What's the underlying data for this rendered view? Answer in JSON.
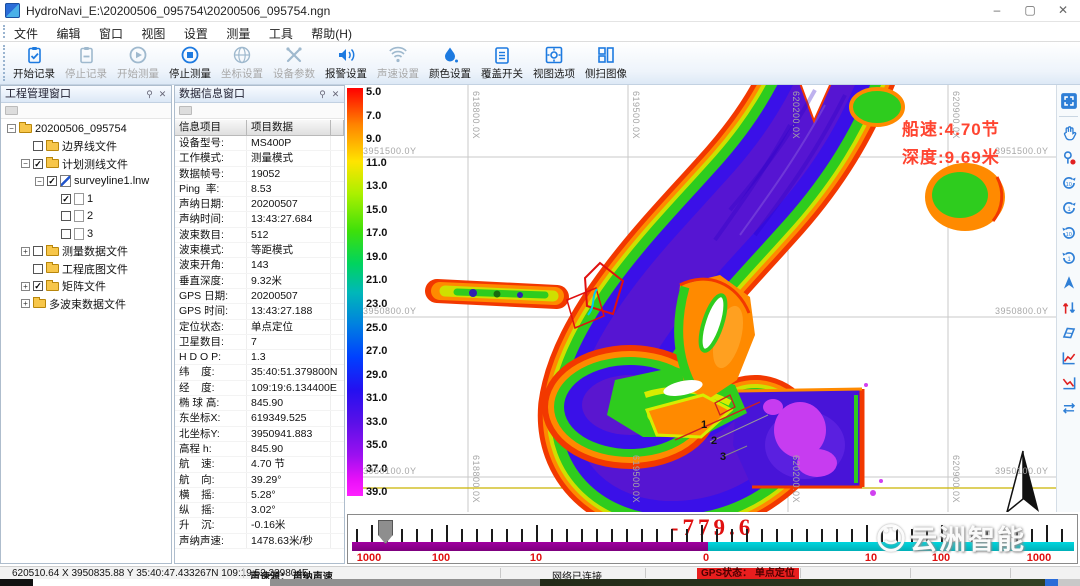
{
  "window": {
    "title": "HydroNavi_E:\\20200506_095754\\20200506_095754.ngn",
    "controls": {
      "minimize": "–",
      "restore": "▢",
      "close": "✕"
    }
  },
  "menu": {
    "items": [
      "文件",
      "编辑",
      "窗口",
      "视图",
      "设置",
      "测量",
      "工具",
      "帮助(H)"
    ]
  },
  "toolbar": {
    "buttons": [
      {
        "label": "开始记录",
        "icon": "record-start-icon",
        "enabled": true
      },
      {
        "label": "停止记录",
        "icon": "record-stop-icon",
        "enabled": false
      },
      {
        "label": "开始测量",
        "icon": "measure-start-icon",
        "enabled": false
      },
      {
        "label": "停止测量",
        "icon": "measure-stop-icon",
        "enabled": true
      },
      {
        "label": "坐标设置",
        "icon": "coordinate-settings-icon",
        "enabled": false
      },
      {
        "label": "设备参数",
        "icon": "device-params-icon",
        "enabled": false
      },
      {
        "label": "报警设置",
        "icon": "alarm-settings-icon",
        "enabled": true
      },
      {
        "label": "声速设置",
        "icon": "sound-speed-settings-icon",
        "enabled": false
      },
      {
        "label": "颜色设置",
        "icon": "color-settings-icon",
        "enabled": true
      },
      {
        "label": "覆盖开关",
        "icon": "overlay-switch-icon",
        "enabled": true
      },
      {
        "label": "视图选项",
        "icon": "view-options-icon",
        "enabled": true
      },
      {
        "label": "侧扫图像",
        "icon": "sidescan-image-icon",
        "enabled": true
      }
    ]
  },
  "project_panel": {
    "title": "工程管理窗口",
    "tree": [
      {
        "indent": 0,
        "expand": "minus",
        "check": null,
        "icon": "folder",
        "label": "20200506_095754"
      },
      {
        "indent": 1,
        "expand": null,
        "check": "off",
        "icon": "folder",
        "label": "边界线文件"
      },
      {
        "indent": 1,
        "expand": "minus",
        "check": "on",
        "icon": "folder",
        "label": "计划测线文件"
      },
      {
        "indent": 2,
        "expand": "minus",
        "check": "on",
        "icon": "linefile",
        "label": "surveyline1.lnw"
      },
      {
        "indent": 3,
        "expand": null,
        "check": "on",
        "icon": "page",
        "label": "1"
      },
      {
        "indent": 3,
        "expand": null,
        "check": "off",
        "icon": "page",
        "label": "2"
      },
      {
        "indent": 3,
        "expand": null,
        "check": "off",
        "icon": "page",
        "label": "3"
      },
      {
        "indent": 1,
        "expand": "plus",
        "check": "off",
        "icon": "folder",
        "label": "测量数据文件"
      },
      {
        "indent": 1,
        "expand": null,
        "check": "off",
        "icon": "folder",
        "label": "工程底图文件"
      },
      {
        "indent": 1,
        "expand": "plus",
        "check": "on",
        "icon": "folder",
        "label": "矩阵文件"
      },
      {
        "indent": 1,
        "expand": "plus",
        "check": null,
        "icon": "folder",
        "label": "多波束数据文件"
      }
    ]
  },
  "data_panel": {
    "title": "数据信息窗口",
    "columns": [
      "信息项目",
      "项目数据"
    ],
    "rows": [
      [
        "设备型号:",
        "MS400P"
      ],
      [
        "工作模式:",
        "测量模式"
      ],
      [
        "数据帧号:",
        "19052"
      ],
      [
        "Ping  率:",
        "8.53"
      ],
      [
        "声纳日期:",
        "20200507"
      ],
      [
        "声纳时间:",
        "13:43:27.684"
      ],
      [
        "波束数目:",
        "512"
      ],
      [
        "波束模式:",
        "等距模式"
      ],
      [
        "波束开角:",
        "143"
      ],
      [
        "垂直深度:",
        "9.32米"
      ],
      [
        "GPS 日期:",
        "20200507"
      ],
      [
        "GPS 时间:",
        "13:43:27.188"
      ],
      [
        "定位状态:",
        "单点定位"
      ],
      [
        "卫星数目:",
        "7"
      ],
      [
        "H D O P:",
        "1.3"
      ],
      [
        "纬    度:",
        "35:40:51.379800N"
      ],
      [
        "经    度:",
        "109:19:6.134400E"
      ],
      [
        "椭 球 高:",
        "845.90"
      ],
      [
        "东坐标X:",
        "619349.525"
      ],
      [
        "北坐标Y:",
        "3950941.883"
      ],
      [
        "高程 h:",
        "845.90"
      ],
      [
        "航    速:",
        "4.70 节"
      ],
      [
        "航    向:",
        "39.29°"
      ],
      [
        "横    摇:",
        "5.28°"
      ],
      [
        "纵    摇:",
        "3.02°"
      ],
      [
        "升    沉:",
        "-0.16米"
      ],
      [
        "声纳声速:",
        "1478.63米/秒"
      ]
    ]
  },
  "map": {
    "speed_label": "船速:4.70节",
    "depth_label": "深度:9.69米",
    "color_scale_values": [
      "5.0",
      "7.0",
      "9.0",
      "11.0",
      "13.0",
      "15.0",
      "17.0",
      "19.0",
      "21.0",
      "23.0",
      "25.0",
      "27.0",
      "29.0",
      "31.0",
      "33.0",
      "35.0",
      "37.0",
      "39.0"
    ],
    "grid_x_labels": [
      "618800.0X",
      "619500.0X",
      "620200.0X",
      "620900.0X"
    ],
    "grid_y_labels": [
      "3951500.0Y",
      "3950800.0Y",
      "3950100.0Y"
    ],
    "plan_line_labels": [
      "1",
      "2",
      "3"
    ]
  },
  "right_toolbar": {
    "tools": [
      "fullscreen",
      "pan-hand",
      "position-pin",
      "rotate-cw-10",
      "rotate-cw-1",
      "rotate-ccw-10",
      "rotate-ccw-1",
      "north-pointer",
      "updown-swap",
      "swath",
      "profile-chart",
      "profile-chart-alt",
      "exchange"
    ]
  },
  "slider": {
    "value": "-779.6",
    "tick_labels": [
      "1000",
      "100",
      "10",
      "0",
      "10",
      "100",
      "1000"
    ]
  },
  "statusbar": {
    "coordinates": "620510.64 X   3950835.88 Y   35:40:47.433267N 109:19:52.239804E",
    "sound_source": "声速源： 声纳声速",
    "network": "网络已连接",
    "gps": "GPS状态： 单点定位"
  },
  "watermark": {
    "text": "云洲智能"
  },
  "colors": {
    "accent_blue": "#1d7ae0",
    "alert_red": "#e81e1e",
    "value_red": "#e01010",
    "bar_purple": "#8b0a8b",
    "bar_cyan": "#00c3cc"
  }
}
